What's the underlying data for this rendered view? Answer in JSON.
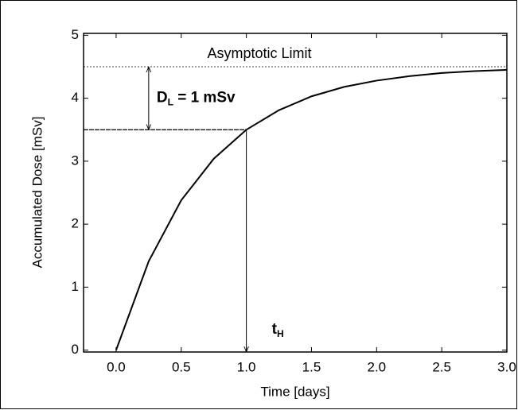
{
  "chart_data": {
    "type": "line",
    "xlabel": "Time [days]",
    "ylabel": "Accumulated Dose [mSv]",
    "x": [
      0,
      0.25,
      0.5,
      0.75,
      1.0,
      1.25,
      1.5,
      1.75,
      2.0,
      2.25,
      2.5,
      2.75,
      3.0
    ],
    "series": [
      {
        "color": "#000000",
        "values": [
          0,
          1.41,
          2.38,
          3.04,
          3.5,
          3.81,
          4.03,
          4.18,
          4.28,
          4.35,
          4.4,
          4.43,
          4.45
        ]
      }
    ],
    "xlim": [
      -0.25,
      3.0
    ],
    "ylim": [
      -0.03,
      5.03
    ],
    "xticks": [
      {
        "value": 0,
        "label": "0.0"
      },
      0.5,
      {
        "value": 1,
        "label": "1.0"
      },
      1.5,
      {
        "value": 2,
        "label": "2.0"
      },
      2.5,
      {
        "value": 3,
        "label": "3.0"
      }
    ],
    "yticks": [
      0,
      1,
      2,
      3,
      4,
      5
    ],
    "asymptote": {
      "label": "Asymptotic Limit",
      "value": 4.5
    },
    "dose_limit": {
      "label": {
        "main": "D",
        "sub": "L",
        "rest": " = 1 mSv"
      },
      "x": 0.25,
      "from": 3.5,
      "to": 4.5
    },
    "t_h": {
      "label": {
        "main": "t",
        "sub": "H"
      },
      "x": 1.0,
      "y": 3.5
    }
  }
}
